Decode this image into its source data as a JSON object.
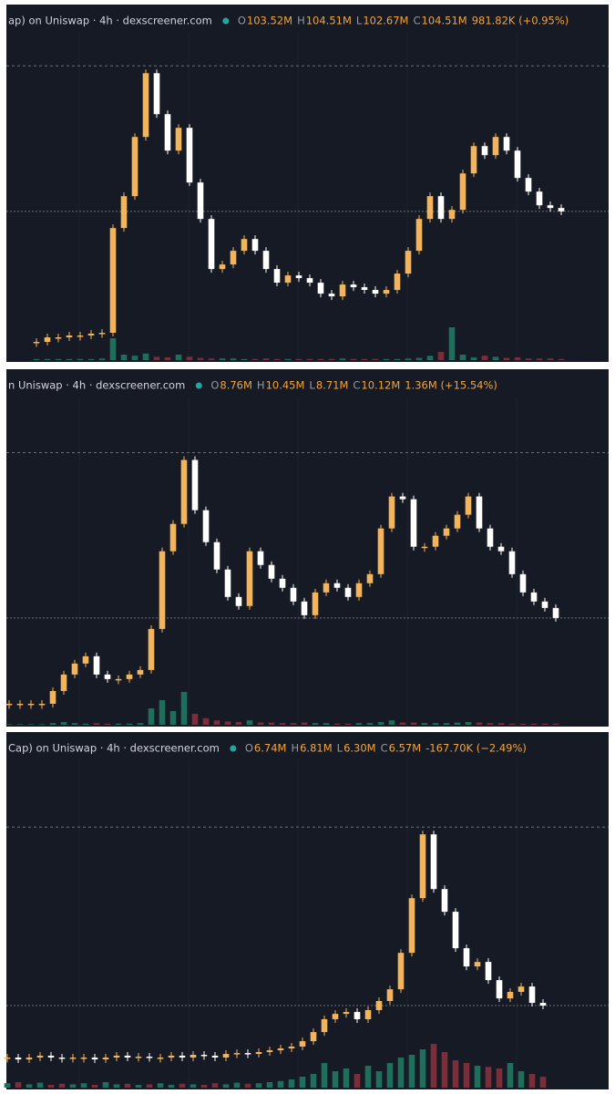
{
  "chart_data": [
    {
      "type": "candlestick",
      "title": "ap) on Uniswap · 4h · dexscreener.com",
      "ohlc": [
        {
          "key": "O",
          "value": "103.52M"
        },
        {
          "key": "H",
          "value": "104.51M"
        },
        {
          "key": "L",
          "value": "102.67M"
        },
        {
          "key": "C",
          "value": "104.51M"
        }
      ],
      "change": "981.82K (+0.95%)",
      "values": [
        12.8,
        16.0,
        16.0,
        17.3,
        17.3,
        18.6,
        19.2,
        92.8,
        115.2,
        156.8,
        201.6,
        172.8,
        147.2,
        163.2,
        124.8,
        99.2,
        64.0,
        67.2,
        76.8,
        85.1,
        76.8,
        64.0,
        54.4,
        59.5,
        57.6,
        54.4,
        46.7,
        44.8,
        53.1,
        51.2,
        49.3,
        46.7,
        49.3,
        60.8,
        76.8,
        99.2,
        115.2,
        99.2,
        105.6,
        131.2,
        150.4,
        144.0,
        156.8,
        147.2,
        128.0,
        118.4,
        108.8,
        106.9,
        104.51
      ],
      "volume": [
        2,
        2,
        2,
        2,
        2,
        2,
        3,
        40,
        10,
        8,
        12,
        6,
        5,
        10,
        6,
        4,
        3,
        3,
        3,
        2,
        2,
        3,
        2,
        2,
        2,
        2,
        2,
        2,
        3,
        2,
        2,
        2,
        2,
        2,
        3,
        4,
        8,
        15,
        60,
        10,
        5,
        8,
        6,
        4,
        5,
        3,
        3,
        3,
        2
      ],
      "ylim": [
        0,
        221
      ],
      "volume_lim": [
        0,
        100
      ],
      "up_color": "#f2b45c",
      "down_color": "#ffffff",
      "volume_up_color": "#1f6e5c",
      "volume_down_color": "#7a2e3a"
    },
    {
      "type": "candlestick",
      "title": "n Uniswap · 4h · dexscreener.com",
      "ohlc": [
        {
          "key": "O",
          "value": "8.76M"
        },
        {
          "key": "H",
          "value": "10.45M"
        },
        {
          "key": "L",
          "value": "8.71M"
        },
        {
          "key": "C",
          "value": "10.12M"
        }
      ],
      "change": "1.36M (+15.54%)",
      "values": [
        1.99,
        1.99,
        1.99,
        1.99,
        3.2,
        4.76,
        5.8,
        6.49,
        4.76,
        4.33,
        4.33,
        4.76,
        5.19,
        9.08,
        16.44,
        19.03,
        25.09,
        20.33,
        17.3,
        14.71,
        12.11,
        11.25,
        16.44,
        15.14,
        13.84,
        12.98,
        11.68,
        10.38,
        12.54,
        13.41,
        12.98,
        12.11,
        13.41,
        14.27,
        18.6,
        21.63,
        21.37,
        16.87,
        16.87,
        17.91,
        18.6,
        19.9,
        21.63,
        18.6,
        16.87,
        16.44,
        14.27,
        12.54,
        11.68,
        11.07,
        10.12
      ],
      "volume": [
        1,
        1,
        1,
        1,
        3,
        5,
        3,
        2,
        3,
        2,
        2,
        2,
        3,
        30,
        45,
        25,
        60,
        20,
        12,
        8,
        6,
        5,
        8,
        4,
        4,
        3,
        3,
        4,
        3,
        3,
        2,
        2,
        3,
        3,
        5,
        8,
        4,
        4,
        3,
        3,
        3,
        4,
        5,
        4,
        3,
        3,
        2,
        2,
        2,
        2,
        2
      ],
      "ylim": [
        0,
        29.8
      ],
      "volume_lim": [
        0,
        100
      ],
      "up_color": "#f2b45c",
      "down_color": "#ffffff",
      "volume_up_color": "#1f6e5c",
      "volume_down_color": "#7a2e3a"
    },
    {
      "type": "candlestick",
      "title": "Cap) on Uniswap · 4h · dexscreener.com",
      "ohlc": [
        {
          "key": "O",
          "value": "6.74M"
        },
        {
          "key": "H",
          "value": "6.81M"
        },
        {
          "key": "L",
          "value": "6.30M"
        },
        {
          "key": "C",
          "value": "6.57M"
        }
      ],
      "change": "-167.70K (−2.49%)",
      "values": [
        2.41,
        2.26,
        2.41,
        2.56,
        2.41,
        2.34,
        2.41,
        2.41,
        2.26,
        2.41,
        2.56,
        2.41,
        2.48,
        2.41,
        2.41,
        2.56,
        2.41,
        2.63,
        2.56,
        2.41,
        2.7,
        2.77,
        2.7,
        2.85,
        2.99,
        3.14,
        3.29,
        3.72,
        4.45,
        5.48,
        5.91,
        6.06,
        5.48,
        6.21,
        6.94,
        7.88,
        10.8,
        15.18,
        20.29,
        15.91,
        14.09,
        11.17,
        9.71,
        10.07,
        8.61,
        7.15,
        7.67,
        8.1,
        6.79,
        6.57
      ],
      "volume": [
        8,
        10,
        6,
        9,
        5,
        7,
        6,
        8,
        5,
        10,
        6,
        7,
        5,
        6,
        8,
        5,
        7,
        6,
        5,
        8,
        6,
        9,
        7,
        8,
        10,
        12,
        15,
        20,
        25,
        45,
        30,
        35,
        25,
        40,
        30,
        45,
        55,
        60,
        70,
        80,
        65,
        50,
        45,
        40,
        38,
        35,
        45,
        30,
        25,
        20
      ],
      "ylim": [
        0,
        25.2
      ],
      "volume_lim": [
        0,
        100
      ],
      "up_color": "#f2b45c",
      "down_color": "#ffffff",
      "volume_up_color": "#1f6e5c",
      "volume_down_color": "#7a2e3a"
    }
  ]
}
